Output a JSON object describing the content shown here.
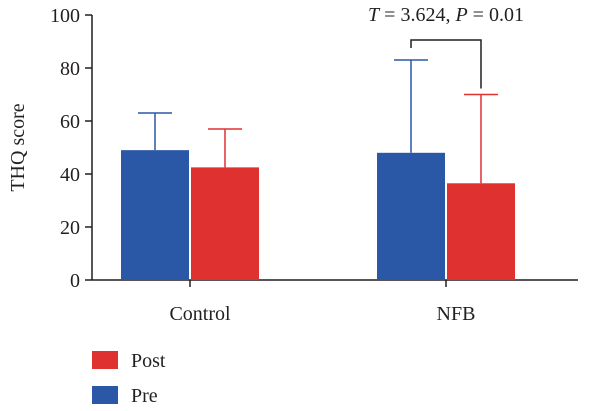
{
  "chart_data": {
    "type": "bar",
    "categories": [
      "Control",
      "NFB"
    ],
    "series": [
      {
        "name": "Pre",
        "values": [
          49,
          48
        ],
        "error": [
          14,
          35
        ],
        "color": "#2a58a6"
      },
      {
        "name": "Post",
        "values": [
          42.5,
          36.5
        ],
        "error": [
          14.5,
          33.5
        ],
        "color": "#e03131"
      }
    ],
    "ylabel": "THQ score",
    "xlabel": "",
    "ylim": [
      0,
      100
    ],
    "yticks": [
      0,
      20,
      40,
      60,
      80,
      100
    ],
    "grid": false,
    "legend": {
      "placement": "bottom-left",
      "order": [
        "Post",
        "Pre"
      ]
    },
    "annotation": {
      "category": "NFB",
      "parts": [
        {
          "text": "T",
          "italic": true
        },
        {
          "text": " = 3.624, ",
          "italic": false
        },
        {
          "text": "P",
          "italic": true
        },
        {
          "text": " = 0.01",
          "italic": false
        }
      ]
    }
  }
}
